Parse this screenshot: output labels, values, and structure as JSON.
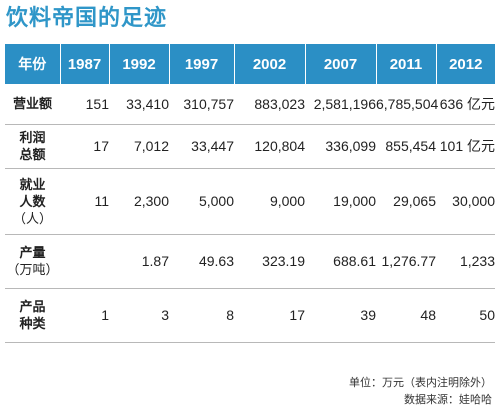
{
  "title": "饮料帝国的足迹",
  "header": {
    "label": "年份",
    "years": [
      "1987",
      "1992",
      "1997",
      "2002",
      "2007",
      "2011",
      "2012"
    ]
  },
  "rows": [
    {
      "label": [
        "营业额"
      ],
      "values": [
        "151",
        "33,410",
        "310,757",
        "883,023",
        "2,581,196",
        "6,785,504",
        "636 亿元"
      ]
    },
    {
      "label": [
        "利润",
        "总额"
      ],
      "values": [
        "17",
        "7,012",
        "33,447",
        "120,804",
        "336,099",
        "855,454",
        "101 亿元"
      ]
    },
    {
      "label": [
        "就业",
        "人数",
        "（人）"
      ],
      "values": [
        "11",
        "2,300",
        "5,000",
        "9,000",
        "19,000",
        "29,065",
        "30,000"
      ]
    },
    {
      "label": [
        "产量",
        "（万吨）"
      ],
      "values": [
        "",
        "1.87",
        "49.63",
        "323.19",
        "688.61",
        "1,276.77",
        "1,233"
      ]
    },
    {
      "label": [
        "产品",
        "种类"
      ],
      "values": [
        "1",
        "3",
        "8",
        "17",
        "39",
        "48",
        "50"
      ]
    }
  ],
  "notes": {
    "unit": "单位：万元（表内注明除外）",
    "source": "数据来源：娃哈哈"
  }
}
